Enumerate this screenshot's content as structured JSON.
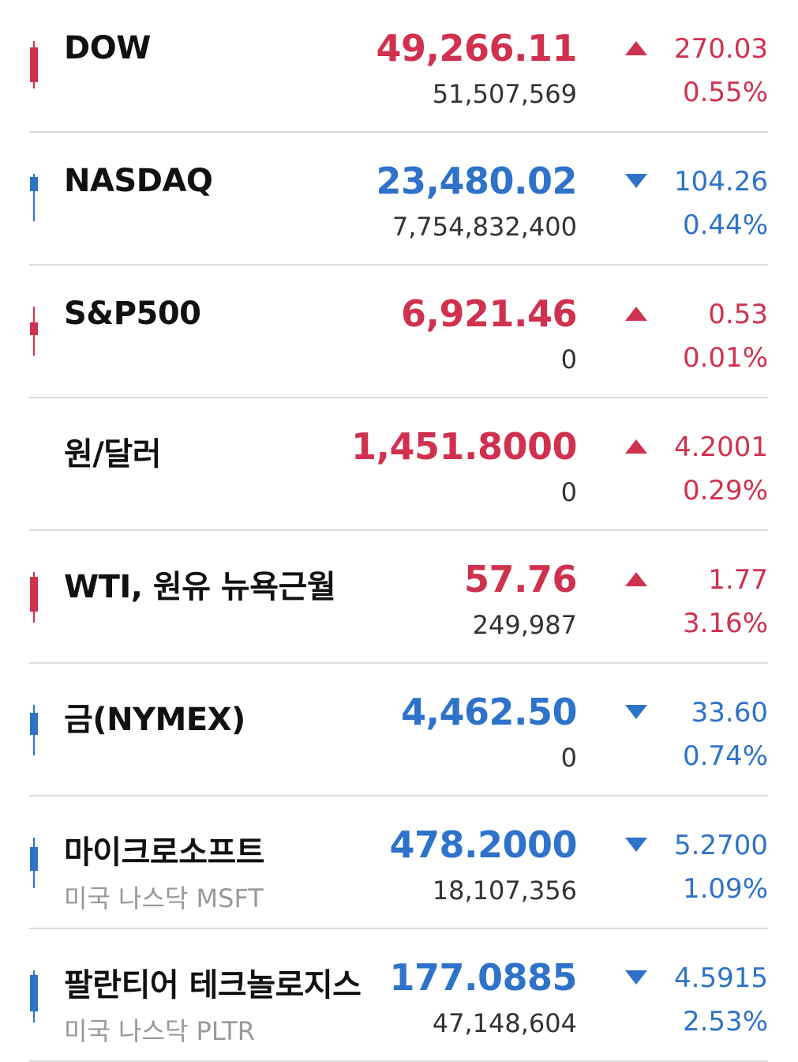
{
  "colors": {
    "up": "#d0314f",
    "down": "#2e73c9"
  },
  "items": [
    {
      "name": "DOW",
      "sub": "",
      "price": "49,266.11",
      "volume": "51,507,569",
      "direction": "up",
      "change": "270.03",
      "percent": "0.55%"
    },
    {
      "name": "NASDAQ",
      "sub": "",
      "price": "23,480.02",
      "volume": "7,754,832,400",
      "direction": "down",
      "change": "104.26",
      "percent": "0.44%"
    },
    {
      "name": "S&P500",
      "sub": "",
      "price": "6,921.46",
      "volume": "0",
      "direction": "up",
      "change": "0.53",
      "percent": "0.01%"
    },
    {
      "name": "원/달러",
      "sub": "",
      "price": "1,451.8000",
      "volume": "0",
      "direction": "up",
      "change": "4.2001",
      "percent": "0.29%"
    },
    {
      "name": "WTI, 원유 뉴욕근월",
      "sub": "",
      "price": "57.76",
      "volume": "249,987",
      "direction": "up",
      "change": "1.77",
      "percent": "3.16%"
    },
    {
      "name": "금(NYMEX)",
      "sub": "",
      "price": "4,462.50",
      "volume": "0",
      "direction": "down",
      "change": "33.60",
      "percent": "0.74%"
    },
    {
      "name": "마이크로소프트",
      "sub": "미국 나스닥 MSFT",
      "price": "478.2000",
      "volume": "18,107,356",
      "direction": "down",
      "change": "5.2700",
      "percent": "1.09%"
    },
    {
      "name": "팔란티어 테크놀로지스",
      "sub": "미국 나스닥 PLTR",
      "price": "177.0885",
      "volume": "47,148,604",
      "direction": "down",
      "change": "4.5915",
      "percent": "2.53%"
    }
  ]
}
